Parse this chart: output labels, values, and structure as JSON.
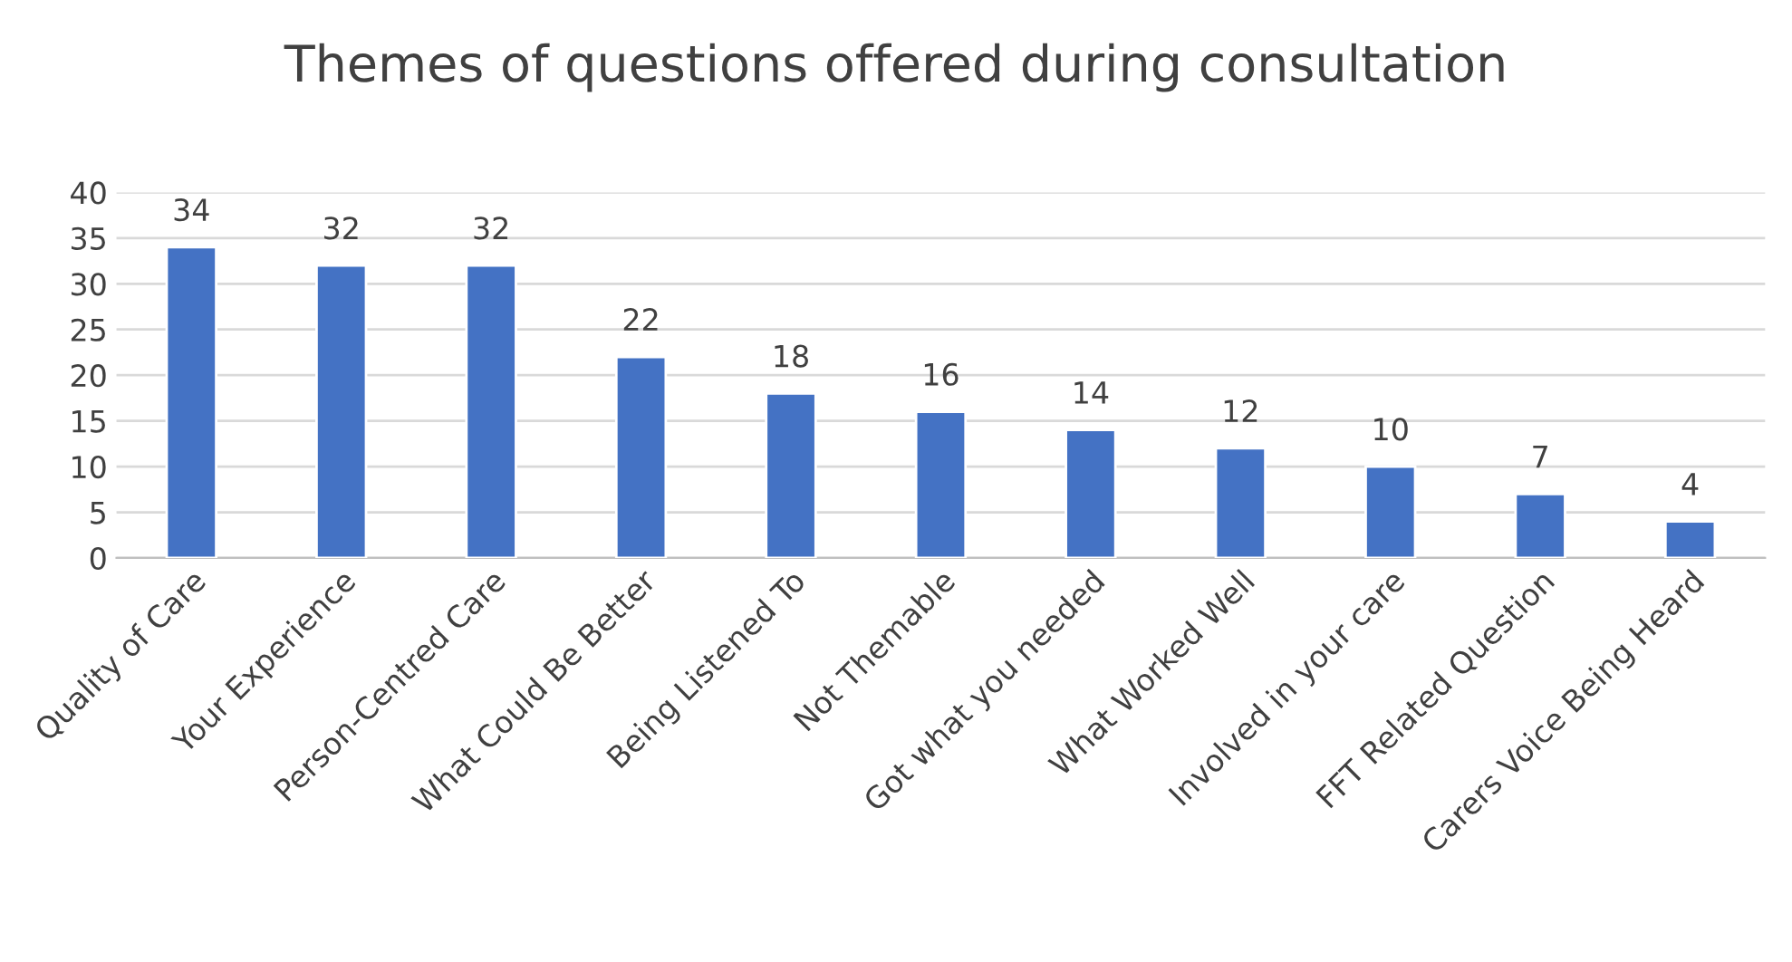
{
  "chart_data": {
    "type": "bar",
    "title": "Themes of questions offered during consultation",
    "categories": [
      "Quality of Care",
      "Your Experience",
      "Person-Centred Care",
      "What Could Be Better",
      "Being Listened To",
      "Not Themable",
      "Got what you needed",
      "What Worked Well",
      "Involved in your care",
      "FFT Related Question",
      "Carers Voice Being Heard"
    ],
    "values": [
      34,
      32,
      32,
      22,
      18,
      16,
      14,
      12,
      10,
      7,
      4
    ],
    "color": "#4472c4",
    "ylim": [
      0,
      40
    ],
    "yticks": [
      0,
      5,
      10,
      15,
      20,
      25,
      30,
      35,
      40
    ],
    "grid": "y",
    "data_labels": true
  }
}
